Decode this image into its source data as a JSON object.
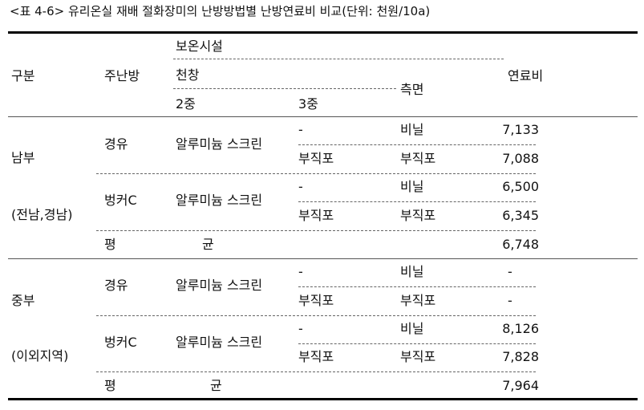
{
  "caption": "<표 4-6> 유리온실 재배 절화장미의 난방방법별 난방연료비 비교(단위: 천원/10a)",
  "header": {
    "gubun": "구분",
    "main_heating": "주난방",
    "insulation": "보온시설",
    "ceiling": "천창",
    "double": "2중",
    "triple": "3중",
    "side": "측면",
    "fuel_cost": "연료비"
  },
  "south": {
    "region": "남부",
    "region_sub": "(전남,경남)",
    "groups": [
      {
        "heating": "경유",
        "screen": "알루미늄 스크린",
        "rows": [
          {
            "triple": "-",
            "side": "비닐",
            "cost": "7,133"
          },
          {
            "triple": "부직포",
            "side": "부직포",
            "cost": "7,088"
          }
        ]
      },
      {
        "heating": "벙커C",
        "screen": "알루미늄 스크린",
        "rows": [
          {
            "triple": "-",
            "side": "비닐",
            "cost": "6,500"
          },
          {
            "triple": "부직포",
            "side": "부직포",
            "cost": "6,345"
          }
        ]
      }
    ],
    "avg_label_1": "평",
    "avg_label_2": "균",
    "avg": "6,748"
  },
  "central": {
    "region": "중부",
    "region_sub": "(이외지역)",
    "groups": [
      {
        "heating": "경유",
        "screen": "알루미늄 스크린",
        "rows": [
          {
            "triple": "-",
            "side": "비닐",
            "cost": "-"
          },
          {
            "triple": "부직포",
            "side": "부직포",
            "cost": "-"
          }
        ]
      },
      {
        "heating": "벙커C",
        "screen": "알루미늄 스크린",
        "rows": [
          {
            "triple": "-",
            "side": "비닐",
            "cost": "8,126"
          },
          {
            "triple": "부직포",
            "side": "부직포",
            "cost": "7,828"
          }
        ]
      }
    ],
    "avg_label_1": "평",
    "avg_label_2": "균",
    "avg": "7,964"
  }
}
